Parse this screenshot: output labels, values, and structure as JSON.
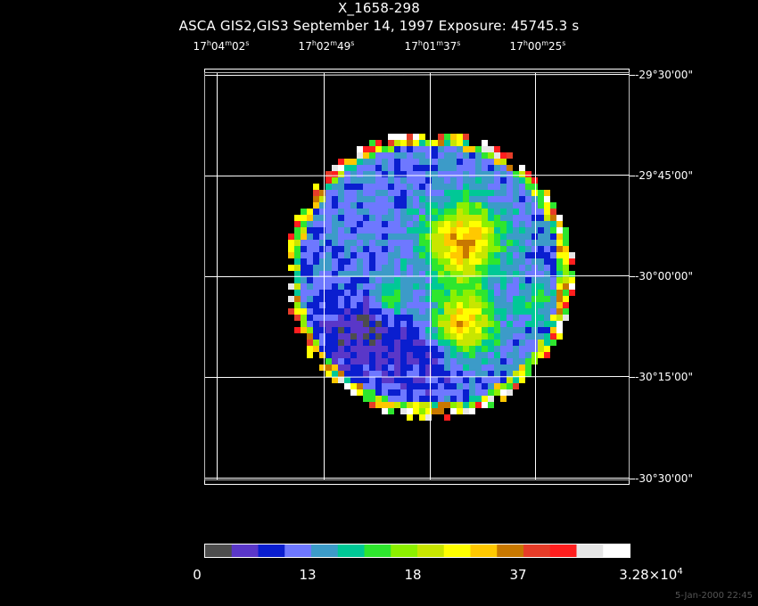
{
  "header": {
    "object": "X_1658-298",
    "observation": "ASCA GIS2,GIS3 September 14, 1997 Exposure: 45745.3 s"
  },
  "axes": {
    "ra_labels": [
      {
        "h": "17",
        "m": "04",
        "s": "02"
      },
      {
        "h": "17",
        "m": "02",
        "s": "49"
      },
      {
        "h": "17",
        "m": "01",
        "s": "37"
      },
      {
        "h": "17",
        "m": "00",
        "s": "25"
      }
    ],
    "dec_labels": [
      "-29°30'00\"",
      "-29°45'00\"",
      "-30°00'00\"",
      "-30°15'00\"",
      "-30°30'00\""
    ]
  },
  "colorbar": {
    "colors": [
      "#4d4d4d",
      "#5a37c8",
      "#0a1ecf",
      "#6e78ff",
      "#3c9bc8",
      "#00c896",
      "#2ee62e",
      "#8cf000",
      "#c8e600",
      "#ffff00",
      "#ffc800",
      "#c87800",
      "#e63c28",
      "#ff1e1e",
      "#e6e6e6",
      "#ffffff"
    ],
    "ticks": [
      "0",
      "13",
      "18",
      "37"
    ],
    "max_label_mantissa": "3.28×10",
    "max_label_exp": "4"
  },
  "footer": "5-Jan-2000 22:45"
}
